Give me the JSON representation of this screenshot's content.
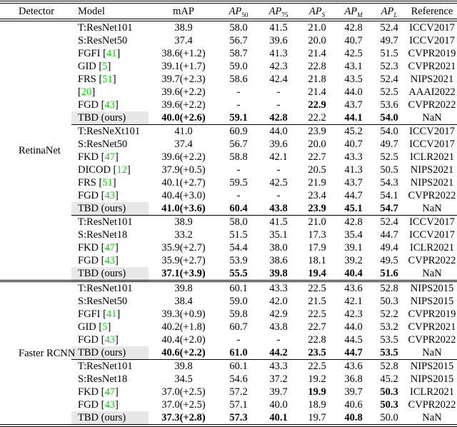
{
  "colors": {
    "citation_green": "#00dd00",
    "highlight_gray": "#e8e8e8"
  },
  "table": {
    "headers": [
      {
        "key": "detector",
        "text": "Detector"
      },
      {
        "key": "model",
        "text": "Model"
      },
      {
        "key": "map",
        "text": "mAP"
      },
      {
        "key": "ap50",
        "text": "AP",
        "sub": "50",
        "italic": true
      },
      {
        "key": "ap75",
        "text": "AP",
        "sub": "75",
        "italic": true
      },
      {
        "key": "aps",
        "text": "AP",
        "sub": "S",
        "italic": true,
        "sub_italic": true
      },
      {
        "key": "apm",
        "text": "AP",
        "sub": "M",
        "italic": true,
        "sub_italic": true
      },
      {
        "key": "apl",
        "text": "AP",
        "sub": "L",
        "italic": true,
        "sub_italic": true
      },
      {
        "key": "reference",
        "text": "Reference"
      }
    ],
    "groups": [
      {
        "detector": "RetinaNet",
        "blocks": [
          {
            "rows": [
              {
                "model": "T:ResNet101",
                "vals": [
                  "38.9",
                  "58.0",
                  "41.5",
                  "21.0",
                  "42.8",
                  "52.4"
                ],
                "ref": "ICCV2017"
              },
              {
                "model": "S:ResNet50",
                "vals": [
                  "37.4",
                  "56.7",
                  "39.6",
                  "20.0",
                  "40.7",
                  "49.7"
                ],
                "ref": "ICCV2017"
              },
              {
                "model": "FGFI",
                "cite": "41",
                "vals": [
                  "38.6(+1.2)",
                  "58.7",
                  "41.3",
                  "21.4",
                  "42.5",
                  "51.5"
                ],
                "ref": "CVPR2019"
              },
              {
                "model": "GID",
                "cite": "5",
                "vals": [
                  "39.1(+1.7)",
                  "59.0",
                  "42.3",
                  "22.8",
                  "43.1",
                  "52.3"
                ],
                "ref": "CVPR2021"
              },
              {
                "model": "FRS",
                "cite": "51",
                "vals": [
                  "39.7(+2.3)",
                  "58.6",
                  "42.4",
                  "21.8",
                  "43.5",
                  "52.4"
                ],
                "ref": "NIPS2021"
              },
              {
                "model": "",
                "cite": "20",
                "vals": [
                  "39.6(+2.2)",
                  "-",
                  "-",
                  "21.4",
                  "44.0",
                  "52.5"
                ],
                "ref": "AAAI2022"
              },
              {
                "model": "FGD",
                "cite": "43",
                "vals": [
                  "39.6(+2.2)",
                  "-",
                  "-",
                  "22.9",
                  "43.7",
                  "53.6"
                ],
                "bold": [
                  3
                ],
                "ref": "CVPR2022"
              },
              {
                "model": "TBD (ours)",
                "highlight": true,
                "vals": [
                  "40.0(+2.6)",
                  "59.1",
                  "42.8",
                  "22.2",
                  "44.1",
                  "54.0"
                ],
                "bold": [
                  0,
                  1,
                  2,
                  4,
                  5
                ],
                "ref": "NaN"
              }
            ]
          },
          {
            "rows": [
              {
                "model": "T:ResNeXt101",
                "vals": [
                  "41.0",
                  "60.9",
                  "44.0",
                  "23.9",
                  "45.2",
                  "54.0"
                ],
                "ref": "ICCV2017"
              },
              {
                "model": "S:ResNet50",
                "vals": [
                  "37.4",
                  "56.7",
                  "39.6",
                  "20.0",
                  "40.7",
                  "49.7"
                ],
                "ref": "ICCV2017"
              },
              {
                "model": "FKD",
                "cite": "47",
                "vals": [
                  "39.6(+2.2)",
                  "58.8",
                  "42.1",
                  "22.7",
                  "43.3",
                  "52.5"
                ],
                "ref": "ICLR2021"
              },
              {
                "model": "DICOD",
                "cite": "12",
                "vals": [
                  "37.9(+0.5)",
                  "-",
                  "-",
                  "20.5",
                  "41.3",
                  "50.5"
                ],
                "ref": "NIPS2021"
              },
              {
                "model": "FRS",
                "cite": "51",
                "vals": [
                  "40.1(+2.7)",
                  "59.5",
                  "42.5",
                  "21.9",
                  "43.7",
                  "54.3"
                ],
                "ref": "NIPS2021"
              },
              {
                "model": "FGD",
                "cite": "43",
                "vals": [
                  "40.4(+3.0)",
                  "-",
                  "-",
                  "23.4",
                  "44.7",
                  "54.1"
                ],
                "ref": "CVPR2022"
              },
              {
                "model": "TBD (ours)",
                "highlight": true,
                "vals": [
                  "41.0(+3.6)",
                  "60.4",
                  "43.8",
                  "23.9",
                  "45.1",
                  "54.7"
                ],
                "bold": [
                  0,
                  1,
                  2,
                  3,
                  4,
                  5
                ],
                "ref": "NaN"
              }
            ]
          },
          {
            "rows": [
              {
                "model": "T:ResNet101",
                "vals": [
                  "38.9",
                  "58.0",
                  "41.5",
                  "21.0",
                  "42.8",
                  "52.4"
                ],
                "ref": "ICCV2017"
              },
              {
                "model": "S:ResNet18",
                "vals": [
                  "33.2",
                  "51.5",
                  "35.1",
                  "17.3",
                  "35.4",
                  "44.7"
                ],
                "ref": "ICCV2017"
              },
              {
                "model": "FKD",
                "cite": "47",
                "vals": [
                  "35.9(+2.7)",
                  "54.4",
                  "38.0",
                  "17.9",
                  "39.1",
                  "49.4"
                ],
                "ref": "ICLR2021"
              },
              {
                "model": "FGD",
                "cite": "43",
                "vals": [
                  "35.9(+2.7)",
                  "53.9",
                  "38.6",
                  "18.1",
                  "39.2",
                  "49.5"
                ],
                "ref": "CVPR2022"
              },
              {
                "model": "TBD (ours)",
                "highlight": true,
                "vals": [
                  "37.1(+3.9)",
                  "55.5",
                  "39.8",
                  "19.4",
                  "40.4",
                  "51.6"
                ],
                "bold": [
                  0,
                  1,
                  2,
                  3,
                  4,
                  5
                ],
                "ref": "NaN"
              }
            ]
          }
        ]
      },
      {
        "detector": "Faster RCNN",
        "blocks": [
          {
            "rows": [
              {
                "model": "T:ResNet101",
                "vals": [
                  "39.8",
                  "60.1",
                  "43.3",
                  "22.5",
                  "43.6",
                  "52.8"
                ],
                "ref": "NIPS2015"
              },
              {
                "model": "S:ResNet50",
                "vals": [
                  "38.4",
                  "59.0",
                  "42.0",
                  "21.5",
                  "42.1",
                  "50.3"
                ],
                "ref": "NIPS2015"
              },
              {
                "model": "FGFI",
                "cite": "41",
                "vals": [
                  "39.3(+0.9)",
                  "59.8",
                  "42.9",
                  "22.5",
                  "42.3",
                  "52.2"
                ],
                "ref": "CVPR2019"
              },
              {
                "model": "GID",
                "cite": "5",
                "vals": [
                  "40.2(+1.8)",
                  "60.7",
                  "43.8",
                  "22.7",
                  "44.0",
                  "53.2"
                ],
                "ref": "CVPR2021"
              },
              {
                "model": "FGD",
                "cite": "43",
                "vals": [
                  "40.4(+2.0)",
                  "-",
                  "-",
                  "22.8",
                  "44.5",
                  "53.5"
                ],
                "ref": "CVPR2022"
              },
              {
                "model": "TBD (ours)",
                "highlight": true,
                "vals": [
                  "40.6(+2.2)",
                  "61.0",
                  "44.2",
                  "23.5",
                  "44.7",
                  "53.5"
                ],
                "bold": [
                  0,
                  1,
                  2,
                  3,
                  4,
                  5
                ],
                "ref": "NaN"
              }
            ]
          },
          {
            "rows": [
              {
                "model": "T:ResNet101",
                "vals": [
                  "39.8",
                  "60.1",
                  "43.3",
                  "22.5",
                  "43.6",
                  "52.8"
                ],
                "ref": "NIPS2015"
              },
              {
                "model": "S:ResNet18",
                "vals": [
                  "34.5",
                  "54.6",
                  "37.2",
                  "19.2",
                  "36.8",
                  "45.2"
                ],
                "ref": "NIPS2015"
              },
              {
                "model": "FKD",
                "cite": "47",
                "vals": [
                  "37.0(+2.5)",
                  "57.2",
                  "39.7",
                  "19.9",
                  "39.7",
                  "50.3"
                ],
                "bold": [
                  3,
                  5
                ],
                "ref": "ICLR2021"
              },
              {
                "model": "FGD",
                "cite": "43",
                "vals": [
                  "37.0(+2.5)",
                  "57.1",
                  "40.0",
                  "18.9",
                  "40.6",
                  "50.3"
                ],
                "bold": [
                  5
                ],
                "ref": "CVPR2022"
              },
              {
                "model": "TBD (ours)",
                "highlight": true,
                "vals": [
                  "37.3(+2.8)",
                  "57.3",
                  "40.1",
                  "19.7",
                  "40.8",
                  "50.0"
                ],
                "bold": [
                  0,
                  1,
                  2,
                  4
                ],
                "ref": "NaN"
              }
            ]
          }
        ]
      }
    ]
  }
}
